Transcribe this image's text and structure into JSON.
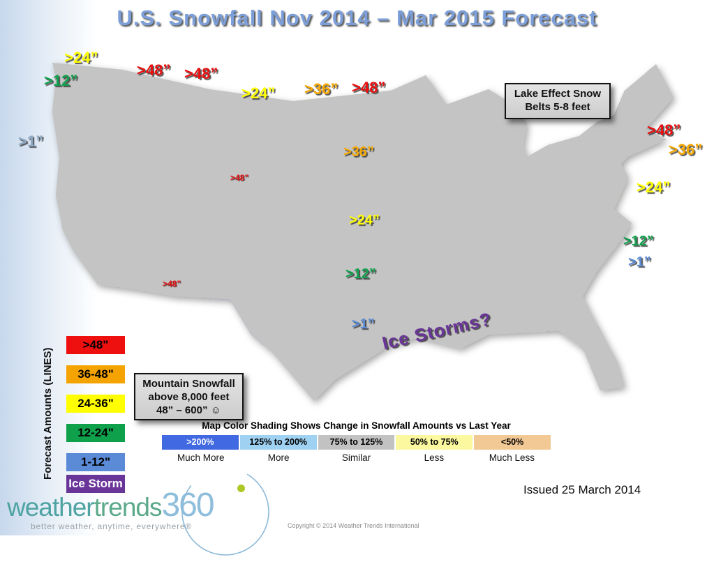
{
  "title": "U.S. Snowfall Nov 2014 – Mar 2015 Forecast",
  "map": {
    "labels": [
      {
        "text": ">24”"
      },
      {
        "text": ">12”"
      },
      {
        "text": ">48”"
      },
      {
        "text": ">48”"
      },
      {
        "text": ">24”"
      },
      {
        "text": ">36”"
      },
      {
        "text": ">48”"
      },
      {
        "text": ">1”"
      },
      {
        "text": ">36”"
      },
      {
        "text": ">48”"
      },
      {
        "text": ">24”"
      },
      {
        "text": ">12”"
      },
      {
        "text": ">48”"
      },
      {
        "text": ">1”"
      },
      {
        "text": "Ice Storms?"
      },
      {
        "text": ">48”"
      },
      {
        "text": ">36”"
      },
      {
        "text": ">24”"
      },
      {
        "text": ">12”"
      },
      {
        "text": ">1”"
      }
    ],
    "callouts": {
      "lake_effect_line1": "Lake Effect Snow",
      "lake_effect_line2": "Belts  5-8 feet",
      "mountain_line1": "Mountain Snowfall",
      "mountain_line2": "above 8,000 feet",
      "mountain_line3": "48” – 600” ☺"
    }
  },
  "line_legend": {
    "axis_label": "Forecast Amounts (LINES)",
    "items": [
      {
        "label": ">48\"",
        "color": "#ee0f0f",
        "text_color": "#000000"
      },
      {
        "label": "36-48\"",
        "color": "#f5a300",
        "text_color": "#000000"
      },
      {
        "label": "24-36\"",
        "color": "#ffff00",
        "text_color": "#000000"
      },
      {
        "label": "12-24\"",
        "color": "#0fa04c",
        "text_color": "#000000"
      },
      {
        "label": "1-12\"",
        "color": "#5b8bd6",
        "text_color": "#000000"
      },
      {
        "label": "Ice Storm",
        "color": "#6a3599",
        "text_color": "#ffffff"
      }
    ]
  },
  "shading_legend": {
    "title": "Map Color Shading Shows Change in Snowfall Amounts vs Last Year",
    "items": [
      {
        "range": ">200%",
        "label": "Much More",
        "color": "#4169e1",
        "text_color": "#ffffff"
      },
      {
        "range": "125% to 200%",
        "label": "More",
        "color": "#9ed1f2",
        "text_color": "#000000"
      },
      {
        "range": "75% to 125%",
        "label": "Similar",
        "color": "#c2c2c2",
        "text_color": "#000000"
      },
      {
        "range": "50% to 75%",
        "label": "Less",
        "color": "#fbf8a0",
        "text_color": "#000000"
      },
      {
        "range": "<50%",
        "label": "Much Less",
        "color": "#f2c894",
        "text_color": "#000000"
      }
    ]
  },
  "footer": {
    "issued": "Issued 25 March 2014",
    "copyright": "Copyright © 2014 Weather Trends International",
    "logo": {
      "part1": "weather",
      "part2": "trends",
      "part3": "360",
      "tagline": "better weather, anytime, everywhere®"
    }
  }
}
